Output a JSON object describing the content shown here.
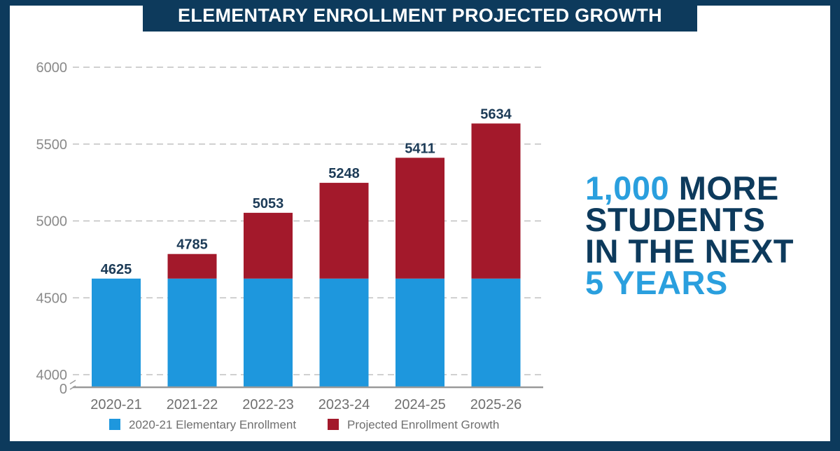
{
  "header": {
    "title": "ELEMENTARY ENROLLMENT PROJECTED GROWTH"
  },
  "callout": {
    "number": "1,000",
    "line1_rest": "MORE",
    "line2": "STUDENTS",
    "line3": "IN THE NEXT",
    "line4": "5 YEARS"
  },
  "colors": {
    "frame": "#0d3a5c",
    "base_series": "#1e97dd",
    "growth_series": "#a3192b",
    "accent": "#2a9fde"
  },
  "chart_data": {
    "type": "bar",
    "stacked": true,
    "title": "ELEMENTARY ENROLLMENT PROJECTED GROWTH",
    "categories": [
      "2020-21",
      "2021-22",
      "2022-23",
      "2023-24",
      "2024-25",
      "2025-26"
    ],
    "totals": [
      4625,
      4785,
      5053,
      5248,
      5411,
      5634
    ],
    "series": [
      {
        "name": "2020-21 Elementary Enrollment",
        "values": [
          4625,
          4625,
          4625,
          4625,
          4625,
          4625
        ]
      },
      {
        "name": "Projected Enrollment Growth",
        "values": [
          0,
          160,
          428,
          623,
          786,
          1009
        ]
      }
    ],
    "y_ticks": [
      "6000",
      "5500",
      "5000",
      "4500",
      "4000"
    ],
    "y_zero_label": "0",
    "ylim": [
      4000,
      6000
    ],
    "axis_break": true,
    "grid": true,
    "legend_position": "bottom"
  }
}
